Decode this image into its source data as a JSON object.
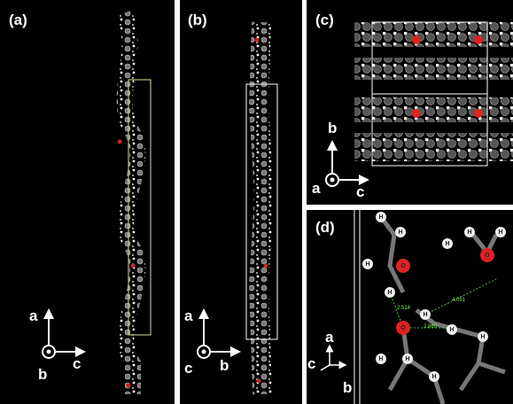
{
  "panels": [
    {
      "label": "(a)",
      "axes": [
        "a",
        "b",
        "c"
      ]
    },
    {
      "label": "(b)",
      "axes": [
        "a",
        "c",
        "b"
      ]
    },
    {
      "label": "(c)",
      "axes": [
        "b",
        "a",
        "c"
      ]
    },
    {
      "label": "(d)",
      "axes": [
        "a",
        "c",
        "b"
      ],
      "distances": [
        "2.514",
        "4.051",
        "2.860"
      ],
      "atoms": [
        "H",
        "H",
        "H",
        "H",
        "O",
        "H",
        "H",
        "H",
        "O",
        "H",
        "H",
        "O",
        "H",
        "H",
        "H",
        "H"
      ]
    }
  ]
}
